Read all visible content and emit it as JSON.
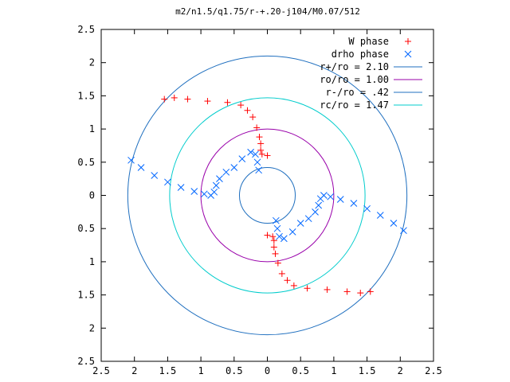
{
  "chart_data": {
    "type": "scatter",
    "title": "m2/n1.5/q1.75/r-+.20-j104/M0.07/512",
    "xlabel": "",
    "ylabel": "",
    "xlim": [
      -2.5,
      2.5
    ],
    "ylim": [
      -2.5,
      2.5
    ],
    "x_ticks": [
      "2.5",
      "2",
      "1.5",
      "1",
      "0.5",
      "0",
      "0.5",
      "1",
      "1.5",
      "2",
      "2.5"
    ],
    "y_ticks": [
      "2.5",
      "2",
      "1.5",
      "1",
      "0.5",
      "0",
      "0.5",
      "1",
      "1.5",
      "2",
      "2.5"
    ],
    "grid": false,
    "legend_position": "top-right",
    "series": [
      {
        "name": "W phase",
        "marker": "+",
        "color": "#ff0000",
        "x": [
          -1.55,
          -1.4,
          -1.2,
          -0.9,
          -0.6,
          -0.4,
          -0.3,
          -0.22,
          -0.16,
          -0.12,
          -0.1,
          -0.1,
          -0.08,
          0.0,
          1.55,
          1.4,
          1.2,
          0.9,
          0.6,
          0.4,
          0.3,
          0.22,
          0.16,
          0.12,
          0.1,
          0.1,
          0.08,
          0.0
        ],
        "y": [
          1.45,
          1.47,
          1.45,
          1.42,
          1.4,
          1.36,
          1.28,
          1.18,
          1.02,
          0.88,
          0.78,
          0.68,
          0.62,
          0.6,
          -1.45,
          -1.47,
          -1.45,
          -1.42,
          -1.4,
          -1.36,
          -1.28,
          -1.18,
          -1.02,
          -0.88,
          -0.78,
          -0.68,
          -0.62,
          -0.6
        ]
      },
      {
        "name": "drho phase",
        "marker": "x",
        "color": "#0066ff",
        "x": [
          -2.05,
          -1.9,
          -1.7,
          -1.5,
          -1.3,
          -1.1,
          -0.95,
          -0.85,
          -0.8,
          -0.77,
          -0.72,
          -0.62,
          -0.5,
          -0.38,
          -0.25,
          -0.18,
          -0.15,
          -0.13,
          2.05,
          1.9,
          1.7,
          1.5,
          1.3,
          1.1,
          0.95,
          0.85,
          0.8,
          0.77,
          0.72,
          0.62,
          0.5,
          0.38,
          0.25,
          0.18,
          0.15,
          0.13
        ],
        "y": [
          0.53,
          0.42,
          0.3,
          0.2,
          0.12,
          0.06,
          0.02,
          0.0,
          0.05,
          0.15,
          0.25,
          0.35,
          0.42,
          0.55,
          0.65,
          0.62,
          0.5,
          0.38,
          -0.53,
          -0.42,
          -0.3,
          -0.2,
          -0.12,
          -0.06,
          -0.02,
          0.0,
          -0.05,
          -0.15,
          -0.25,
          -0.35,
          -0.42,
          -0.55,
          -0.65,
          -0.62,
          -0.5,
          -0.38
        ]
      }
    ],
    "circles": [
      {
        "name": "r+/ro = 2.10",
        "radius": 2.1,
        "color": "#1f6fbf"
      },
      {
        "name": "ro/ro = 1.00",
        "radius": 1.0,
        "color": "#9900aa"
      },
      {
        "name": "r-/ro = .42",
        "radius": 0.42,
        "color": "#1f6fbf"
      },
      {
        "name": "rc/ro = 1.47",
        "radius": 1.47,
        "color": "#00cccc"
      }
    ]
  }
}
